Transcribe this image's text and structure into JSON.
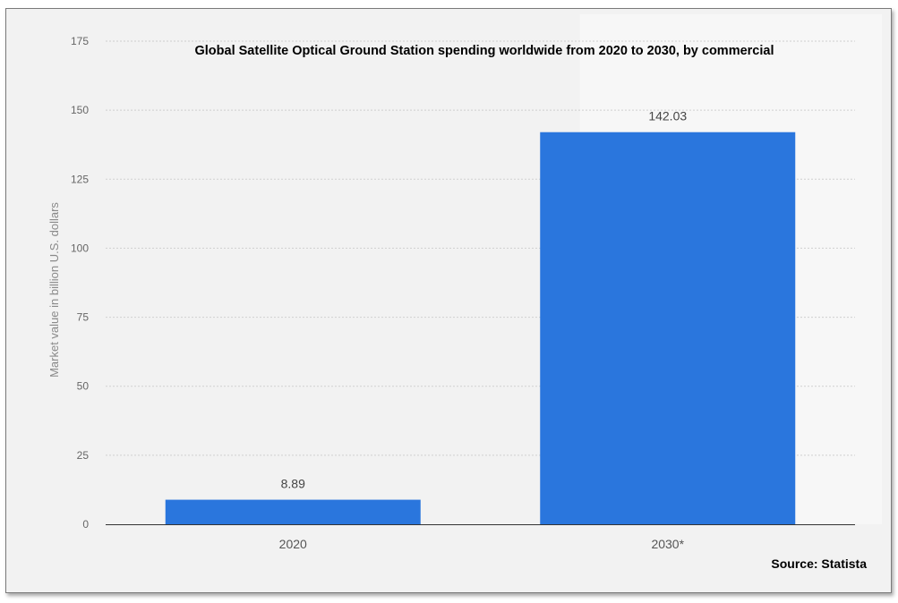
{
  "chart_data": {
    "type": "bar",
    "title": "Global Satellite Optical Ground Station spending worldwide from 2020 to 2030, by commercial",
    "ylabel": "Market value in billion U.S. dollars",
    "xlabel": "",
    "categories": [
      "2020",
      "2030*"
    ],
    "values": [
      8.89,
      142.03
    ],
    "value_labels": [
      "8.89",
      "142.03"
    ],
    "ylim": [
      0,
      175
    ],
    "yticks": [
      0,
      25,
      50,
      75,
      100,
      125,
      150,
      175
    ],
    "grid": true,
    "bar_color": "#2a76dd",
    "source": "Source: Statista"
  }
}
